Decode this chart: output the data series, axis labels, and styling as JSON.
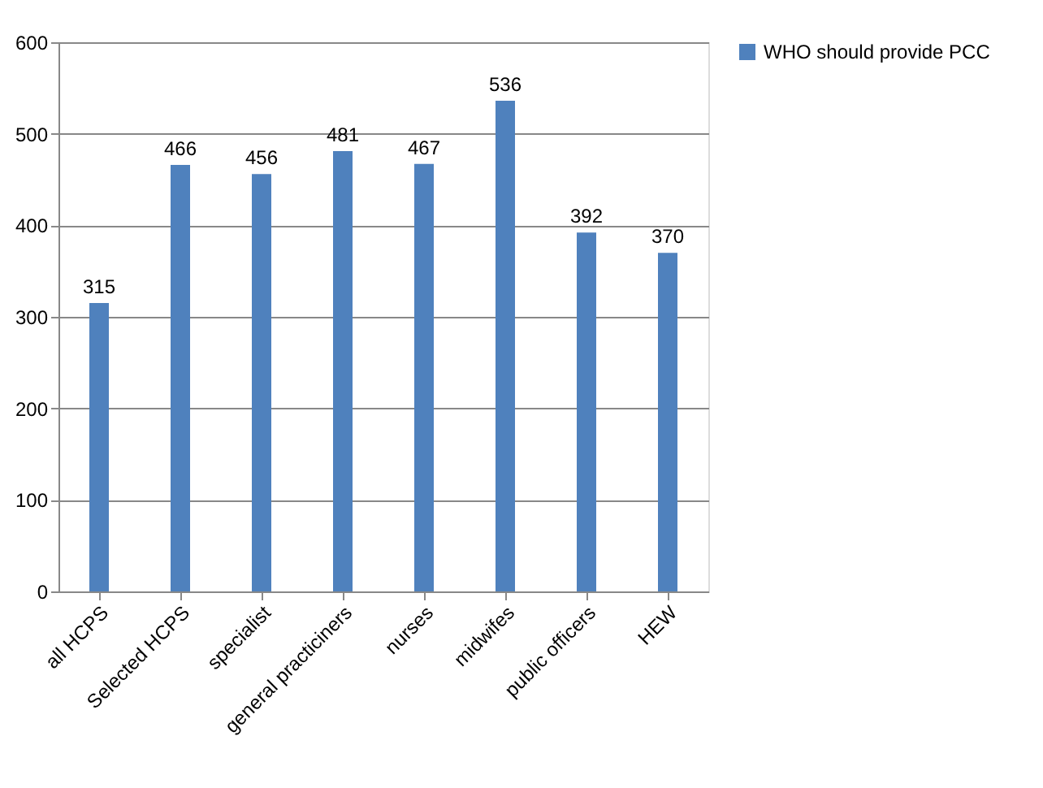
{
  "chart_data": {
    "type": "bar",
    "categories": [
      "all HCPS",
      "Selected HCPS",
      "specialist",
      "general practiciners",
      "nurses",
      "midwifes",
      "public officers",
      "HEW"
    ],
    "series": [
      {
        "name": "WHO should provide PCC",
        "color": "#4f81bd",
        "values": [
          315,
          466,
          456,
          481,
          467,
          536,
          392,
          370
        ]
      }
    ],
    "ylim": [
      0,
      600
    ],
    "yticks": [
      0,
      100,
      200,
      300,
      400,
      500,
      600
    ],
    "grid": "y",
    "legend": "right",
    "data_labels": true
  }
}
